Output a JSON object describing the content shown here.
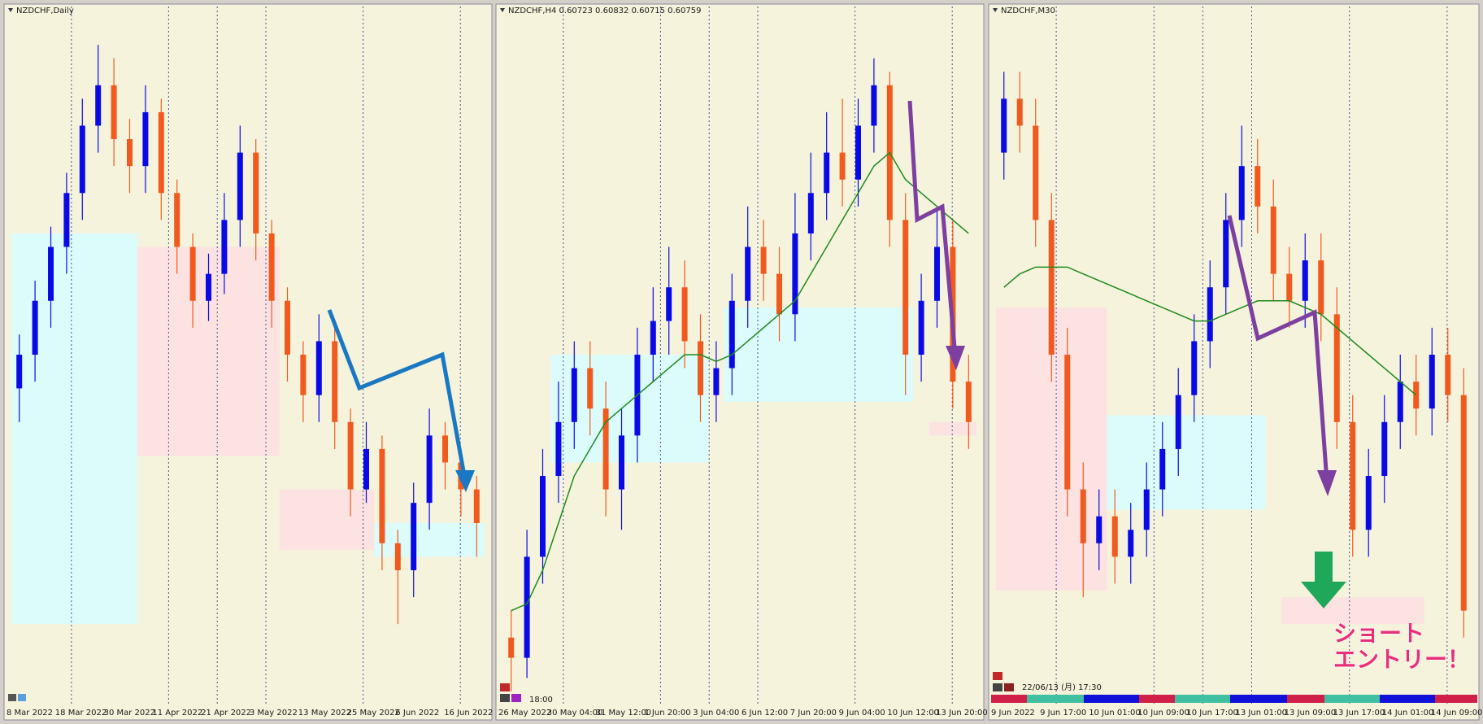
{
  "chart_data": [
    {
      "type": "candlestick",
      "title": "NZDCHF,Daily",
      "up_color": "#0a0ae6",
      "down_color": "#f05a1e",
      "ylim": [
        0,
        100
      ],
      "categories": [
        "8 Mar 2022",
        "18 Mar 2022",
        "30 Mar 2022",
        "11 Apr 2022",
        "21 Apr 2022",
        "3 May 2022",
        "13 May 2022",
        "25 May 2022",
        "6 Jun 2022",
        "16 Jun 2022"
      ],
      "open": [
        45,
        50,
        58,
        66,
        74,
        84,
        90,
        82,
        78,
        86,
        74,
        66,
        58,
        62,
        70,
        80,
        68,
        58,
        50,
        44,
        52,
        40,
        30,
        36,
        22,
        18,
        28,
        38,
        34,
        30
      ],
      "high": [
        53,
        61,
        69,
        77,
        88,
        96,
        94,
        85,
        90,
        88,
        76,
        68,
        65,
        74,
        84,
        82,
        70,
        60,
        52,
        56,
        54,
        42,
        40,
        38,
        24,
        31,
        42,
        40,
        36,
        32
      ],
      "low": [
        40,
        46,
        54,
        62,
        70,
        80,
        78,
        74,
        74,
        70,
        62,
        54,
        55,
        59,
        66,
        64,
        54,
        46,
        40,
        40,
        36,
        26,
        28,
        18,
        10,
        14,
        24,
        30,
        26,
        20
      ],
      "close": [
        50,
        58,
        66,
        74,
        84,
        90,
        82,
        78,
        86,
        74,
        66,
        58,
        62,
        70,
        80,
        68,
        58,
        50,
        44,
        52,
        40,
        30,
        36,
        22,
        18,
        28,
        38,
        34,
        30,
        25
      ],
      "zones": [
        {
          "from": 0,
          "to": 7,
          "low": 10,
          "high": 68,
          "color": "#dcfcfc"
        },
        {
          "from": 8,
          "to": 16,
          "low": 35,
          "high": 66,
          "color": "#fde2e2"
        },
        {
          "from": 17,
          "to": 22,
          "low": 21,
          "high": 30,
          "color": "#fde2e2"
        },
        {
          "from": 23,
          "to": 29,
          "low": 20,
          "high": 25,
          "color": "#dcfcfc"
        }
      ]
    },
    {
      "type": "candlestick",
      "title": "NZDCHF,H4  0.60723 0.60832 0.60715 0.60759",
      "annotation": "18:00",
      "up_color": "#0a0ae6",
      "down_color": "#f05a1e",
      "ma_color": "#1e8a1e",
      "ylim": [
        0,
        100
      ],
      "categories": [
        "26 May 2022",
        "30 May 04:00",
        "31 May 12:00",
        "1 Jun 20:00",
        "3 Jun 04:00",
        "6 Jun 12:00",
        "7 Jun 20:00",
        "9 Jun 04:00",
        "10 Jun 12:00",
        "13 Jun 20:00"
      ],
      "open": [
        8,
        5,
        20,
        32,
        40,
        48,
        42,
        30,
        38,
        50,
        55,
        60,
        52,
        44,
        48,
        58,
        66,
        62,
        56,
        68,
        74,
        80,
        76,
        84,
        90,
        70,
        50,
        58,
        66,
        46
      ],
      "high": [
        12,
        24,
        36,
        46,
        52,
        52,
        46,
        42,
        54,
        60,
        66,
        64,
        56,
        52,
        62,
        72,
        70,
        66,
        74,
        80,
        86,
        88,
        88,
        94,
        92,
        74,
        62,
        72,
        70,
        50
      ],
      "low": [
        0,
        2,
        16,
        28,
        36,
        38,
        26,
        24,
        34,
        46,
        50,
        48,
        40,
        40,
        44,
        54,
        58,
        52,
        52,
        64,
        70,
        72,
        72,
        80,
        66,
        44,
        46,
        54,
        42,
        36
      ],
      "close": [
        5,
        20,
        32,
        40,
        48,
        42,
        30,
        38,
        50,
        55,
        60,
        52,
        44,
        48,
        58,
        66,
        62,
        56,
        68,
        74,
        80,
        76,
        84,
        90,
        70,
        50,
        58,
        66,
        46,
        40
      ],
      "ma": [
        12,
        13,
        18,
        25,
        32,
        36,
        40,
        42,
        44,
        46,
        48,
        50,
        50,
        49,
        50,
        52,
        54,
        56,
        58,
        62,
        66,
        70,
        74,
        78,
        80,
        76,
        74,
        72,
        70,
        68
      ],
      "zones": [
        {
          "from": 3,
          "to": 12,
          "low": 34,
          "high": 50,
          "color": "#dcfcfc"
        },
        {
          "from": 14,
          "to": 25,
          "low": 43,
          "high": 57,
          "color": "#dcfcfc"
        },
        {
          "from": 27,
          "to": 29,
          "low": 38,
          "high": 40,
          "color": "#fde2e2"
        }
      ]
    },
    {
      "type": "candlestick",
      "title": "NZDCHF,M30",
      "annotation": "22/06/13 (月) 17:30",
      "callout": [
        "ショート",
        "エントリー！"
      ],
      "up_color": "#0a0ae6",
      "down_color": "#f05a1e",
      "ma_color": "#1e8a1e",
      "ylim": [
        0,
        100
      ],
      "categories": [
        "9 Jun 2022",
        "9 Jun 17:00",
        "10 Jun 01:00",
        "10 Jun 09:00",
        "10 Jun 17:00",
        "13 Jun 01:00",
        "13 Jun 09:00",
        "13 Jun 17:00",
        "14 Jun 01:00",
        "14 Jun 09:00"
      ],
      "open": [
        80,
        88,
        84,
        70,
        50,
        30,
        22,
        26,
        20,
        24,
        30,
        36,
        44,
        52,
        60,
        70,
        78,
        72,
        62,
        58,
        64,
        56,
        40,
        24,
        32,
        40,
        46,
        42,
        50,
        44
      ],
      "high": [
        92,
        92,
        88,
        74,
        54,
        34,
        30,
        30,
        28,
        34,
        40,
        48,
        56,
        64,
        74,
        84,
        82,
        76,
        66,
        68,
        68,
        60,
        44,
        36,
        44,
        50,
        50,
        54,
        54,
        48
      ],
      "low": [
        76,
        80,
        66,
        46,
        26,
        14,
        18,
        16,
        16,
        20,
        26,
        32,
        40,
        48,
        56,
        66,
        68,
        58,
        54,
        54,
        52,
        36,
        20,
        20,
        28,
        36,
        38,
        38,
        40,
        8
      ],
      "close": [
        88,
        84,
        70,
        50,
        30,
        22,
        26,
        20,
        24,
        30,
        36,
        44,
        52,
        60,
        70,
        78,
        72,
        62,
        58,
        64,
        56,
        40,
        24,
        32,
        40,
        46,
        42,
        50,
        44,
        12
      ],
      "ma": [
        60,
        62,
        63,
        63,
        63,
        62,
        61,
        60,
        59,
        58,
        57,
        56,
        55,
        55,
        56,
        57,
        58,
        58,
        58,
        57,
        56,
        54,
        52,
        50,
        48,
        46,
        44,
        null,
        null,
        null
      ],
      "zones": [
        {
          "from": 0,
          "to": 6,
          "low": 15,
          "high": 57,
          "color": "#fde2e2"
        },
        {
          "from": 7,
          "to": 16,
          "low": 27,
          "high": 41,
          "color": "#dcfcfc"
        },
        {
          "from": 18,
          "to": 26,
          "low": 10,
          "high": 14,
          "color": "#fde2e2"
        }
      ]
    }
  ]
}
